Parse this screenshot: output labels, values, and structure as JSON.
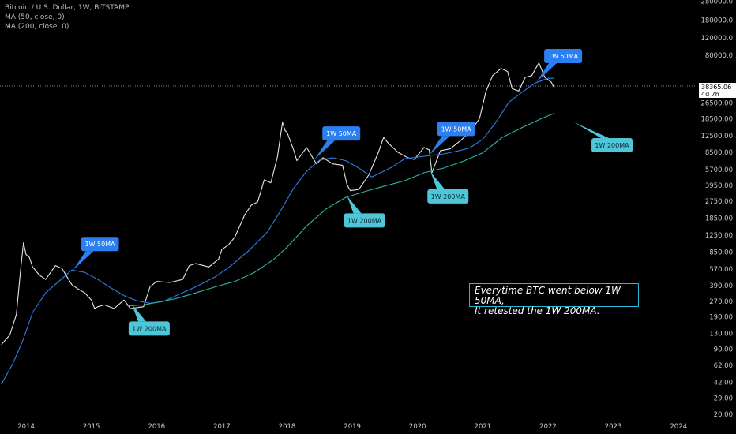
{
  "legend": {
    "symbol": "Bitcoin / U.S. Dollar, 1W, BITSTAMP",
    "ma50": "MA (50, close, 0)",
    "ma200": "MA (200, close, 0)"
  },
  "price_tag": {
    "price": "38365.06",
    "countdown": "4d 7h"
  },
  "note": {
    "line1": "Everytime BTC went below 1W 50MA,",
    "line2": "It retested the 1W 200MA."
  },
  "colors": {
    "price": "#e6e6e6",
    "ma50": "#2f7de1",
    "ma200": "#2fb3a8",
    "label50": "#2c7ff0",
    "label200": "#4fc5d8",
    "background": "#000000"
  },
  "chart_data": {
    "type": "line",
    "title": "Bitcoin / U.S. Dollar, 1W, BITSTAMP",
    "xlim": [
      2013.6,
      2024.3
    ],
    "ylim": [
      20,
      280000
    ],
    "y_scale": "log",
    "x_ticks": [
      "2014",
      "2015",
      "2016",
      "2017",
      "2018",
      "2019",
      "2020",
      "2021",
      "2022",
      "2023",
      "2024"
    ],
    "y_ticks": [
      "280000.0",
      "180000.0",
      "120000.0",
      "80000.0",
      "26500.00",
      "18500.00",
      "12500.00",
      "8500.00",
      "5700.00",
      "3950.00",
      "2750.00",
      "1850.00",
      "1250.00",
      "850.00",
      "570.00",
      "390.00",
      "270.00",
      "190.00",
      "130.00",
      "90.00",
      "62.00",
      "42.00",
      "29.00",
      "20.00"
    ],
    "current_price": 38365.06,
    "series": [
      {
        "name": "Bitcoin / U.S. Dollar",
        "x": [
          2013.62,
          2013.75,
          2013.85,
          2013.92,
          2013.96,
          2014.0,
          2014.05,
          2014.1,
          2014.2,
          2014.3,
          2014.45,
          2014.55,
          2014.7,
          2014.8,
          2014.9,
          2015.0,
          2015.05,
          2015.1,
          2015.2,
          2015.35,
          2015.5,
          2015.6,
          2015.8,
          2015.9,
          2016.0,
          2016.2,
          2016.4,
          2016.5,
          2016.6,
          2016.8,
          2016.95,
          2017.0,
          2017.1,
          2017.2,
          2017.35,
          2017.45,
          2017.55,
          2017.65,
          2017.75,
          2017.85,
          2017.93,
          2017.97,
          2018.0,
          2018.1,
          2018.15,
          2018.3,
          2018.45,
          2018.55,
          2018.7,
          2018.85,
          2018.92,
          2018.97,
          2019.1,
          2019.25,
          2019.4,
          2019.48,
          2019.55,
          2019.7,
          2019.85,
          2019.95,
          2020.1,
          2020.18,
          2020.22,
          2020.35,
          2020.5,
          2020.65,
          2020.8,
          2020.95,
          2021.05,
          2021.15,
          2021.28,
          2021.38,
          2021.45,
          2021.55,
          2021.65,
          2021.75,
          2021.86,
          2021.95,
          2022.05,
          2022.1
        ],
        "values": [
          100,
          125,
          200,
          600,
          1050,
          800,
          750,
          600,
          500,
          450,
          620,
          580,
          400,
          360,
          330,
          280,
          230,
          240,
          250,
          230,
          280,
          230,
          240,
          380,
          430,
          420,
          450,
          620,
          650,
          600,
          720,
          900,
          1000,
          1200,
          2000,
          2500,
          2700,
          4500,
          4200,
          7500,
          17000,
          14000,
          13500,
          9000,
          7000,
          9500,
          6500,
          7500,
          6500,
          6300,
          4000,
          3500,
          3600,
          5000,
          8500,
          12000,
          10500,
          8500,
          7500,
          7200,
          9500,
          9000,
          5300,
          8800,
          9200,
          11000,
          13500,
          18500,
          35000,
          50000,
          59000,
          55000,
          37000,
          35000,
          48000,
          50000,
          67000,
          48000,
          43000,
          37500
        ]
      },
      {
        "name": "MA (50, close, 0)",
        "x": [
          2013.62,
          2013.8,
          2013.95,
          2014.1,
          2014.3,
          2014.5,
          2014.7,
          2014.9,
          2015.1,
          2015.3,
          2015.5,
          2015.7,
          2015.9,
          2016.1,
          2016.3,
          2016.6,
          2016.9,
          2017.1,
          2017.4,
          2017.7,
          2017.9,
          2018.1,
          2018.3,
          2018.5,
          2018.7,
          2018.9,
          2019.1,
          2019.3,
          2019.6,
          2019.8,
          2020.0,
          2020.2,
          2020.4,
          2020.6,
          2020.8,
          2021.0,
          2021.2,
          2021.4,
          2021.6,
          2021.8,
          2022.0,
          2022.1
        ],
        "values": [
          40,
          65,
          110,
          210,
          330,
          430,
          560,
          530,
          450,
          370,
          310,
          275,
          260,
          270,
          310,
          380,
          480,
          590,
          860,
          1350,
          2200,
          3700,
          5500,
          7100,
          7500,
          7000,
          5900,
          4800,
          6000,
          7300,
          7600,
          7900,
          8200,
          8700,
          9400,
          11500,
          17000,
          27000,
          34000,
          42000,
          47000,
          47000
        ]
      },
      {
        "name": "MA (200, close, 0)",
        "x": [
          2015.55,
          2015.8,
          2016.0,
          2016.3,
          2016.6,
          2016.9,
          2017.2,
          2017.5,
          2017.8,
          2018.0,
          2018.3,
          2018.6,
          2018.9,
          2019.2,
          2019.5,
          2019.8,
          2020.1,
          2020.4,
          2020.7,
          2021.0,
          2021.3,
          2021.6,
          2021.9,
          2022.1
        ],
        "values": [
          245,
          250,
          265,
          290,
          330,
          380,
          430,
          530,
          720,
          950,
          1550,
          2300,
          3000,
          3450,
          3900,
          4400,
          5300,
          5900,
          6900,
          8400,
          12000,
          15000,
          18500,
          21000
        ]
      }
    ],
    "annotations": [
      {
        "text": "1W 50MA",
        "kind": "50",
        "x": 2014.72,
        "y": 560
      },
      {
        "text": "1W 200MA",
        "kind": "200",
        "x": 2015.62,
        "y": 255
      },
      {
        "text": "1W 50MA",
        "kind": "50",
        "x": 2018.42,
        "y": 7200
      },
      {
        "text": "1W 200MA",
        "kind": "200",
        "x": 2018.92,
        "y": 3100
      },
      {
        "text": "1W 50MA",
        "kind": "50",
        "x": 2020.18,
        "y": 8000
      },
      {
        "text": "1W 200MA",
        "kind": "200",
        "x": 2020.2,
        "y": 5400
      },
      {
        "text": "1W 50MA",
        "kind": "50",
        "x": 2021.82,
        "y": 43000
      },
      {
        "text": "1W 200MA",
        "kind": "200",
        "x": 2022.4,
        "y": 17000
      }
    ]
  }
}
